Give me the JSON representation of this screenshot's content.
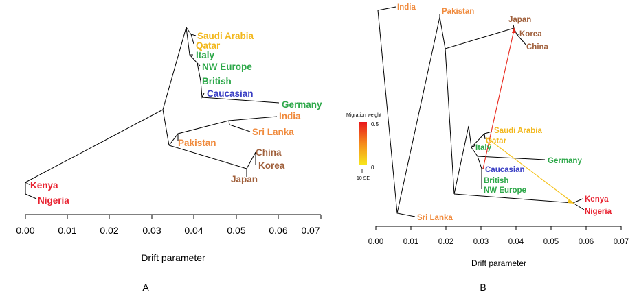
{
  "colors": {
    "africa": "#e8212f",
    "south_asia": "#f08a3c",
    "east_asia": "#a0603c",
    "middle_east": "#f2b71b",
    "europe": "#2ea84a",
    "caucasian": "#3a3fc4",
    "migration_high": "#e8261b",
    "migration_low": "#f5c21b",
    "edge": "#000000"
  },
  "panel_a": {
    "label": "A",
    "chart_data": {
      "type": "tree",
      "xlabel": "Drift parameter",
      "xlim": [
        0.0,
        0.07
      ],
      "ticks": [
        "0.00",
        "0.01",
        "0.02",
        "0.03",
        "0.04",
        "0.05",
        "0.06",
        "0.07"
      ],
      "leaves": [
        {
          "name": "Saudi Arabia",
          "group": "middle_east",
          "drift": 0.041
        },
        {
          "name": "Qatar",
          "group": "middle_east",
          "drift": 0.0405
        },
        {
          "name": "Italy",
          "group": "europe",
          "drift": 0.04
        },
        {
          "name": "NW Europe",
          "group": "europe",
          "drift": 0.0415
        },
        {
          "name": "British",
          "group": "europe",
          "drift": 0.0418
        },
        {
          "name": "Caucasian",
          "group": "caucasian",
          "drift": 0.043
        },
        {
          "name": "Germany",
          "group": "europe",
          "drift": 0.062
        },
        {
          "name": "India",
          "group": "south_asia",
          "drift": 0.06
        },
        {
          "name": "Sri Lanka",
          "group": "south_asia",
          "drift": 0.052
        },
        {
          "name": "Pakistan",
          "group": "south_asia",
          "drift": 0.036
        },
        {
          "name": "China",
          "group": "east_asia",
          "drift": 0.055
        },
        {
          "name": "Korea",
          "group": "east_asia",
          "drift": 0.0545
        },
        {
          "name": "Japan",
          "group": "east_asia",
          "drift": 0.0525
        },
        {
          "name": "Kenya",
          "group": "africa",
          "drift": 0.0002
        },
        {
          "name": "Nigeria",
          "group": "africa",
          "drift": 0.0003
        }
      ]
    }
  },
  "panel_b": {
    "label": "B",
    "legend": {
      "title": "Migration weight",
      "max": "0.5",
      "min": "0",
      "se": "10 SE"
    },
    "chart_data": {
      "type": "tree",
      "xlabel": "Drift parameter",
      "xlim": [
        0.0,
        0.07
      ],
      "ticks": [
        "0.00",
        "0.01",
        "0.02",
        "0.03",
        "0.04",
        "0.05",
        "0.06",
        "0.07"
      ],
      "leaves": [
        {
          "name": "India",
          "group": "south_asia",
          "drift": 0.006
        },
        {
          "name": "Pakistan",
          "group": "south_asia",
          "drift": 0.018
        },
        {
          "name": "Japan",
          "group": "east_asia",
          "drift": 0.04
        },
        {
          "name": "Korea",
          "group": "east_asia",
          "drift": 0.04
        },
        {
          "name": "China",
          "group": "east_asia",
          "drift": 0.043
        },
        {
          "name": "Saudi Arabia",
          "group": "middle_east",
          "drift": 0.033
        },
        {
          "name": "Qatar",
          "group": "middle_east",
          "drift": 0.031
        },
        {
          "name": "Italy",
          "group": "europe",
          "drift": 0.028
        },
        {
          "name": "Germany",
          "group": "europe",
          "drift": 0.045
        },
        {
          "name": "Caucasian",
          "group": "caucasian",
          "drift": 0.0305
        },
        {
          "name": "British",
          "group": "europe",
          "drift": 0.03
        },
        {
          "name": "NW Europe",
          "group": "europe",
          "drift": 0.03
        },
        {
          "name": "Kenya",
          "group": "africa",
          "drift": 0.059
        },
        {
          "name": "Nigeria",
          "group": "africa",
          "drift": 0.059
        },
        {
          "name": "Sri Lanka",
          "group": "south_asia",
          "drift": 0.011
        }
      ],
      "migrations": [
        {
          "from": "Caucasian",
          "to": "Japan",
          "weight": 0.45
        },
        {
          "from": "Qatar",
          "to": "Kenya",
          "weight": 0.05
        }
      ]
    }
  }
}
